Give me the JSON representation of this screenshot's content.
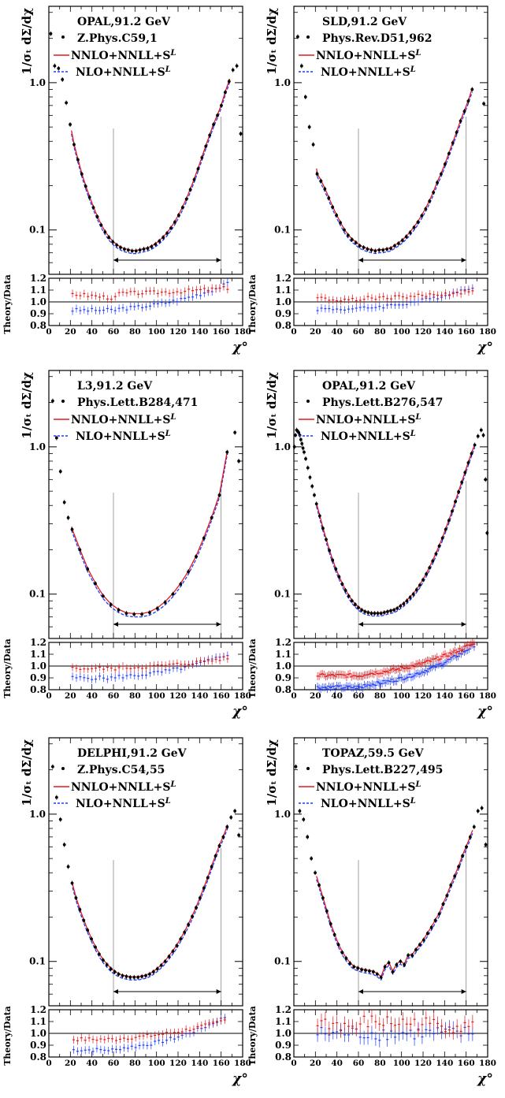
{
  "common": {
    "ylabel": "1/σₜ dΣ/dχ",
    "ratio_ylabel": "Theory/Data",
    "xlabel": "χ°",
    "xlim": [
      0,
      180
    ],
    "x_ticks": [
      0,
      20,
      40,
      60,
      80,
      100,
      120,
      140,
      160,
      180
    ],
    "ylim_log": [
      0.05,
      3.3
    ],
    "y_ticks": [
      "0.1",
      "1.0"
    ],
    "ratio_ylim": [
      0.8,
      1.2
    ],
    "ratio_ticks": [
      "0.8",
      "0.9",
      "1.0",
      "1.1",
      "1.2"
    ],
    "fit_range": [
      60,
      160
    ],
    "colors": {
      "nnlo": "#e31a1c",
      "nlo": "#1f3cff",
      "data": "#000000"
    },
    "legend": {
      "nnlo": "NNLO+NNLL+S",
      "nlo": "NLO+NNLL+S",
      "superscript": "L"
    }
  },
  "chart_data": [
    {
      "type": "line",
      "experiment": "OPAL,91.2 GeV",
      "reference": "Z.Phys.C59,1",
      "theory_x_range": [
        21,
        168
      ],
      "data_x": [
        1.8,
        5.4,
        9,
        12.6,
        16.2,
        19.8,
        23.4,
        27,
        30.6,
        34.2,
        37.8,
        41.4,
        45,
        48.6,
        52.2,
        55.8,
        59.4,
        63,
        66.6,
        70.2,
        73.8,
        77.4,
        81,
        84.6,
        88.2,
        91.8,
        95.4,
        99,
        102.6,
        106.2,
        109.8,
        113.4,
        117,
        120.6,
        124.2,
        127.8,
        131.4,
        135,
        138.6,
        142.2,
        145.8,
        149.4,
        153,
        156.6,
        160.2,
        163.8,
        167.4,
        171,
        174.6,
        178.2
      ],
      "data_y": [
        2.15,
        1.3,
        1.25,
        1.05,
        0.73,
        0.52,
        0.38,
        0.3,
        0.24,
        0.198,
        0.167,
        0.142,
        0.123,
        0.108,
        0.097,
        0.089,
        0.083,
        0.079,
        0.076,
        0.074,
        0.073,
        0.072,
        0.072,
        0.073,
        0.074,
        0.075,
        0.077,
        0.08,
        0.084,
        0.089,
        0.095,
        0.103,
        0.113,
        0.126,
        0.142,
        0.162,
        0.188,
        0.22,
        0.26,
        0.31,
        0.37,
        0.44,
        0.52,
        0.6,
        0.7,
        0.86,
        1.02,
        1.22,
        1.3,
        0.45
      ],
      "ratio_nnlo": [
        1.07,
        1.12
      ],
      "ratio_nlo": [
        0.93,
        1.16
      ]
    },
    {
      "type": "line",
      "experiment": "SLD,91.2 GeV",
      "reference": "Phys.Rev.D51,962",
      "theory_x_range": [
        21,
        166
      ],
      "data_x": [
        3.6,
        7.2,
        10.8,
        14.4,
        18,
        21.6,
        25.2,
        28.8,
        32.4,
        36,
        39.6,
        43.2,
        46.8,
        50.4,
        54,
        57.6,
        61.2,
        64.8,
        68.4,
        72,
        75.6,
        79.2,
        82.8,
        86.4,
        90,
        93.6,
        97.2,
        100.8,
        104.4,
        108,
        111.6,
        115.2,
        118.8,
        122.4,
        126,
        129.6,
        133.2,
        136.8,
        140.4,
        144,
        147.6,
        151.2,
        154.8,
        158.4,
        162,
        165.6,
        176.4
      ],
      "data_y": [
        2.05,
        1.3,
        0.8,
        0.5,
        0.38,
        0.24,
        0.215,
        0.19,
        0.165,
        0.143,
        0.126,
        0.112,
        0.1,
        0.092,
        0.086,
        0.082,
        0.078,
        0.076,
        0.074,
        0.073,
        0.072,
        0.073,
        0.073,
        0.074,
        0.075,
        0.078,
        0.081,
        0.085,
        0.09,
        0.096,
        0.104,
        0.113,
        0.125,
        0.139,
        0.157,
        0.18,
        0.21,
        0.24,
        0.28,
        0.33,
        0.39,
        0.46,
        0.55,
        0.64,
        0.75,
        0.9,
        0.72
      ],
      "ratio_nnlo": [
        1.03,
        1.09
      ],
      "ratio_nlo": [
        0.94,
        1.13
      ]
    },
    {
      "type": "line",
      "experiment": "L3,91.2 GeV",
      "reference": "Phys.Lett.B284,471",
      "theory_x_range": [
        21,
        166
      ],
      "data_x": [
        3.6,
        7.2,
        10.8,
        14.4,
        18,
        21.6,
        28.8,
        36,
        43.2,
        50.4,
        57.6,
        64.8,
        72,
        79.2,
        86.4,
        93.6,
        100.8,
        108,
        115.2,
        122.4,
        129.6,
        136.8,
        144,
        151.2,
        158.4,
        165.6,
        172.8,
        176.4
      ],
      "data_y": [
        2.05,
        1.15,
        0.68,
        0.42,
        0.33,
        0.275,
        0.2,
        0.148,
        0.118,
        0.097,
        0.085,
        0.078,
        0.074,
        0.073,
        0.073,
        0.075,
        0.08,
        0.088,
        0.1,
        0.117,
        0.142,
        0.18,
        0.24,
        0.33,
        0.47,
        0.92,
        1.25,
        0.8
      ],
      "ratio_nnlo": [
        0.98,
        1.07
      ],
      "ratio_nlo": [
        0.9,
        1.1
      ]
    },
    {
      "type": "line",
      "experiment": "OPAL,91.2 GeV",
      "reference": "Phys.Lett.B276,547",
      "theory_x_range": [
        21,
        168
      ],
      "data_x": [
        0.5,
        1.5,
        2.5,
        3.5,
        4.5,
        5.5,
        6.5,
        7.5,
        8.5,
        9.5,
        11,
        13,
        15,
        17,
        19,
        21,
        24,
        27,
        30,
        33,
        36,
        39,
        42,
        45,
        48,
        51,
        54,
        57,
        60,
        63,
        66,
        69,
        72,
        75,
        78,
        81,
        84,
        87,
        90,
        93,
        96,
        99,
        102,
        105,
        108,
        111,
        114,
        117,
        120,
        123,
        126,
        129,
        132,
        135,
        138,
        141,
        144,
        147,
        150,
        153,
        156,
        159,
        162,
        165,
        168,
        171,
        174,
        176,
        178,
        179.5
      ],
      "data_y": [
        1.0,
        1.2,
        1.3,
        1.28,
        1.25,
        1.2,
        1.12,
        1.05,
        0.98,
        0.92,
        0.83,
        0.72,
        0.62,
        0.54,
        0.47,
        0.41,
        0.34,
        0.28,
        0.235,
        0.198,
        0.17,
        0.148,
        0.131,
        0.117,
        0.106,
        0.097,
        0.09,
        0.085,
        0.081,
        0.078,
        0.076,
        0.075,
        0.074,
        0.074,
        0.074,
        0.074,
        0.075,
        0.076,
        0.077,
        0.078,
        0.08,
        0.083,
        0.086,
        0.09,
        0.095,
        0.1,
        0.107,
        0.115,
        0.125,
        0.137,
        0.151,
        0.168,
        0.188,
        0.212,
        0.24,
        0.275,
        0.316,
        0.365,
        0.425,
        0.495,
        0.575,
        0.67,
        0.78,
        0.9,
        1.03,
        1.18,
        1.3,
        1.2,
        0.6,
        0.26
      ],
      "ratio_nnlo": [
        0.92,
        1.2
      ],
      "ratio_nlo": [
        0.82,
        1.18
      ]
    },
    {
      "type": "line",
      "experiment": "DELPHI,91.2 GeV",
      "reference": "Z.Phys.C54,55",
      "theory_x_range": [
        22,
        166
      ],
      "data_x": [
        3.6,
        7.2,
        10.8,
        14.4,
        18,
        21.6,
        25.2,
        28.8,
        32.4,
        36,
        39.6,
        43.2,
        46.8,
        50.4,
        54,
        57.6,
        61.2,
        64.8,
        68.4,
        72,
        75.6,
        79.2,
        82.8,
        86.4,
        90,
        93.6,
        97.2,
        100.8,
        104.4,
        108,
        111.6,
        115.2,
        118.8,
        122.4,
        126,
        129.6,
        133.2,
        136.8,
        140.4,
        144,
        147.6,
        151.2,
        154.8,
        158.4,
        162,
        165.6,
        169.2,
        172.8,
        176.4
      ],
      "data_y": [
        2.1,
        1.3,
        0.92,
        0.62,
        0.44,
        0.34,
        0.27,
        0.225,
        0.19,
        0.163,
        0.142,
        0.125,
        0.112,
        0.102,
        0.095,
        0.089,
        0.085,
        0.082,
        0.08,
        0.079,
        0.078,
        0.078,
        0.078,
        0.079,
        0.08,
        0.082,
        0.085,
        0.089,
        0.094,
        0.1,
        0.108,
        0.117,
        0.128,
        0.142,
        0.158,
        0.178,
        0.202,
        0.232,
        0.27,
        0.315,
        0.37,
        0.44,
        0.52,
        0.61,
        0.7,
        0.82,
        0.95,
        1.05,
        0.72
      ],
      "ratio_nnlo": [
        0.95,
        1.12
      ],
      "ratio_nlo": [
        0.86,
        1.15
      ]
    },
    {
      "type": "line",
      "experiment": "TOPAZ,59.5 GeV",
      "reference": "Phys.Lett.B227,495",
      "theory_x_range": [
        21,
        166
      ],
      "data_x": [
        1.8,
        5.4,
        9,
        12.6,
        16.2,
        19.8,
        23.4,
        27,
        30.6,
        34.2,
        37.8,
        41.4,
        45,
        48.6,
        52.2,
        55.8,
        59.4,
        63,
        66.6,
        70.2,
        73.8,
        77.4,
        81,
        84.6,
        88.2,
        91.8,
        95.4,
        99,
        102.6,
        106.2,
        109.8,
        113.4,
        117,
        120.6,
        124.2,
        127.8,
        131.4,
        135,
        138.6,
        142.2,
        145.8,
        149.4,
        153,
        156.6,
        160.2,
        163.8,
        167.4,
        171,
        174.6,
        178.2
      ],
      "data_y": [
        2.1,
        1.05,
        0.92,
        0.7,
        0.5,
        0.4,
        0.33,
        0.27,
        0.22,
        0.18,
        0.152,
        0.13,
        0.115,
        0.105,
        0.097,
        0.092,
        0.09,
        0.088,
        0.087,
        0.086,
        0.085,
        0.082,
        0.078,
        0.092,
        0.098,
        0.085,
        0.095,
        0.1,
        0.095,
        0.11,
        0.11,
        0.12,
        0.13,
        0.14,
        0.155,
        0.17,
        0.19,
        0.21,
        0.245,
        0.28,
        0.33,
        0.38,
        0.44,
        0.52,
        0.6,
        0.7,
        0.82,
        1.05,
        1.1,
        0.62
      ],
      "ratio_nnlo": [
        1.1,
        1.05
      ],
      "ratio_nlo": [
        1.0,
        1.0
      ]
    }
  ]
}
